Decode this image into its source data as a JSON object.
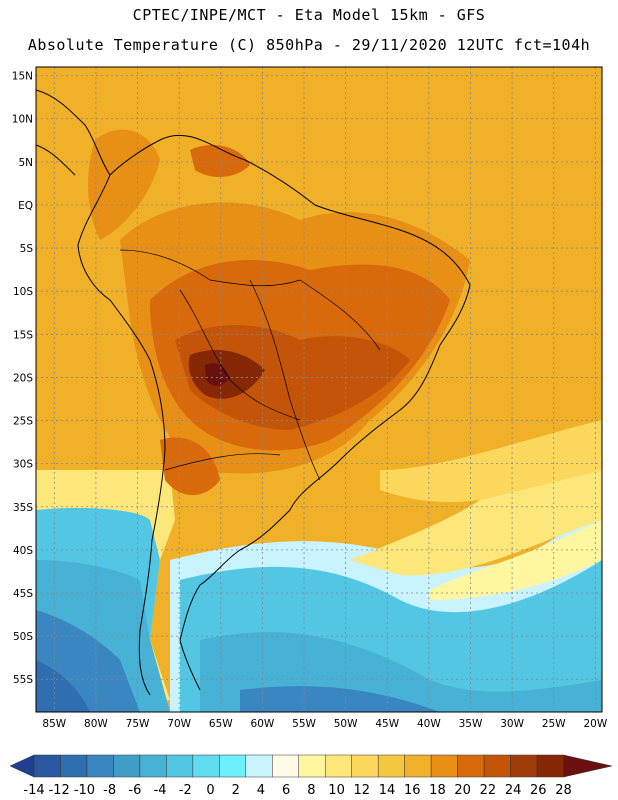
{
  "header": {
    "title_line1": "CPTEC/INPE/MCT -  Eta Model 15km - GFS",
    "title_line2": "Absolute Temperature (C) 850hPa - 29/11/2020 12UTC fct=104h"
  },
  "axes": {
    "lat_labels": [
      "15N",
      "10N",
      "5N",
      "EQ",
      "5S",
      "10S",
      "15S",
      "20S",
      "25S",
      "30S",
      "35S",
      "40S",
      "45S",
      "50S",
      "55S"
    ],
    "lon_labels": [
      "85W",
      "80W",
      "75W",
      "70W",
      "65W",
      "60W",
      "55W",
      "50W",
      "45W",
      "40W",
      "35W",
      "30W",
      "25W",
      "20W"
    ],
    "lat_values": [
      15,
      10,
      5,
      0,
      -5,
      -10,
      -15,
      -20,
      -25,
      -30,
      -35,
      -40,
      -45,
      -50,
      -55
    ],
    "lon_values": [
      -85,
      -80,
      -75,
      -70,
      -65,
      -60,
      -55,
      -50,
      -45,
      -40,
      -35,
      -30,
      -25,
      -20
    ]
  },
  "colorbar": {
    "labels": [
      "-14",
      "-12",
      "-10",
      "-8",
      "-6",
      "-4",
      "-2",
      "0",
      "2",
      "4",
      "6",
      "8",
      "10",
      "12",
      "14",
      "16",
      "18",
      "20",
      "22",
      "24",
      "26",
      "28"
    ],
    "colors": [
      "#1f3f8f",
      "#2a57a0",
      "#2f6eb0",
      "#3a86c0",
      "#3f9ec8",
      "#47b2d6",
      "#52c6e2",
      "#5fdcee",
      "#6ef0fa",
      "#c8f3ff",
      "#fffbe6",
      "#fff7a0",
      "#fde77a",
      "#fbd85c",
      "#f6c640",
      "#f0b028",
      "#e88f16",
      "#d86a0c",
      "#c45408",
      "#a03c08",
      "#862806",
      "#6a1010"
    ]
  }
}
